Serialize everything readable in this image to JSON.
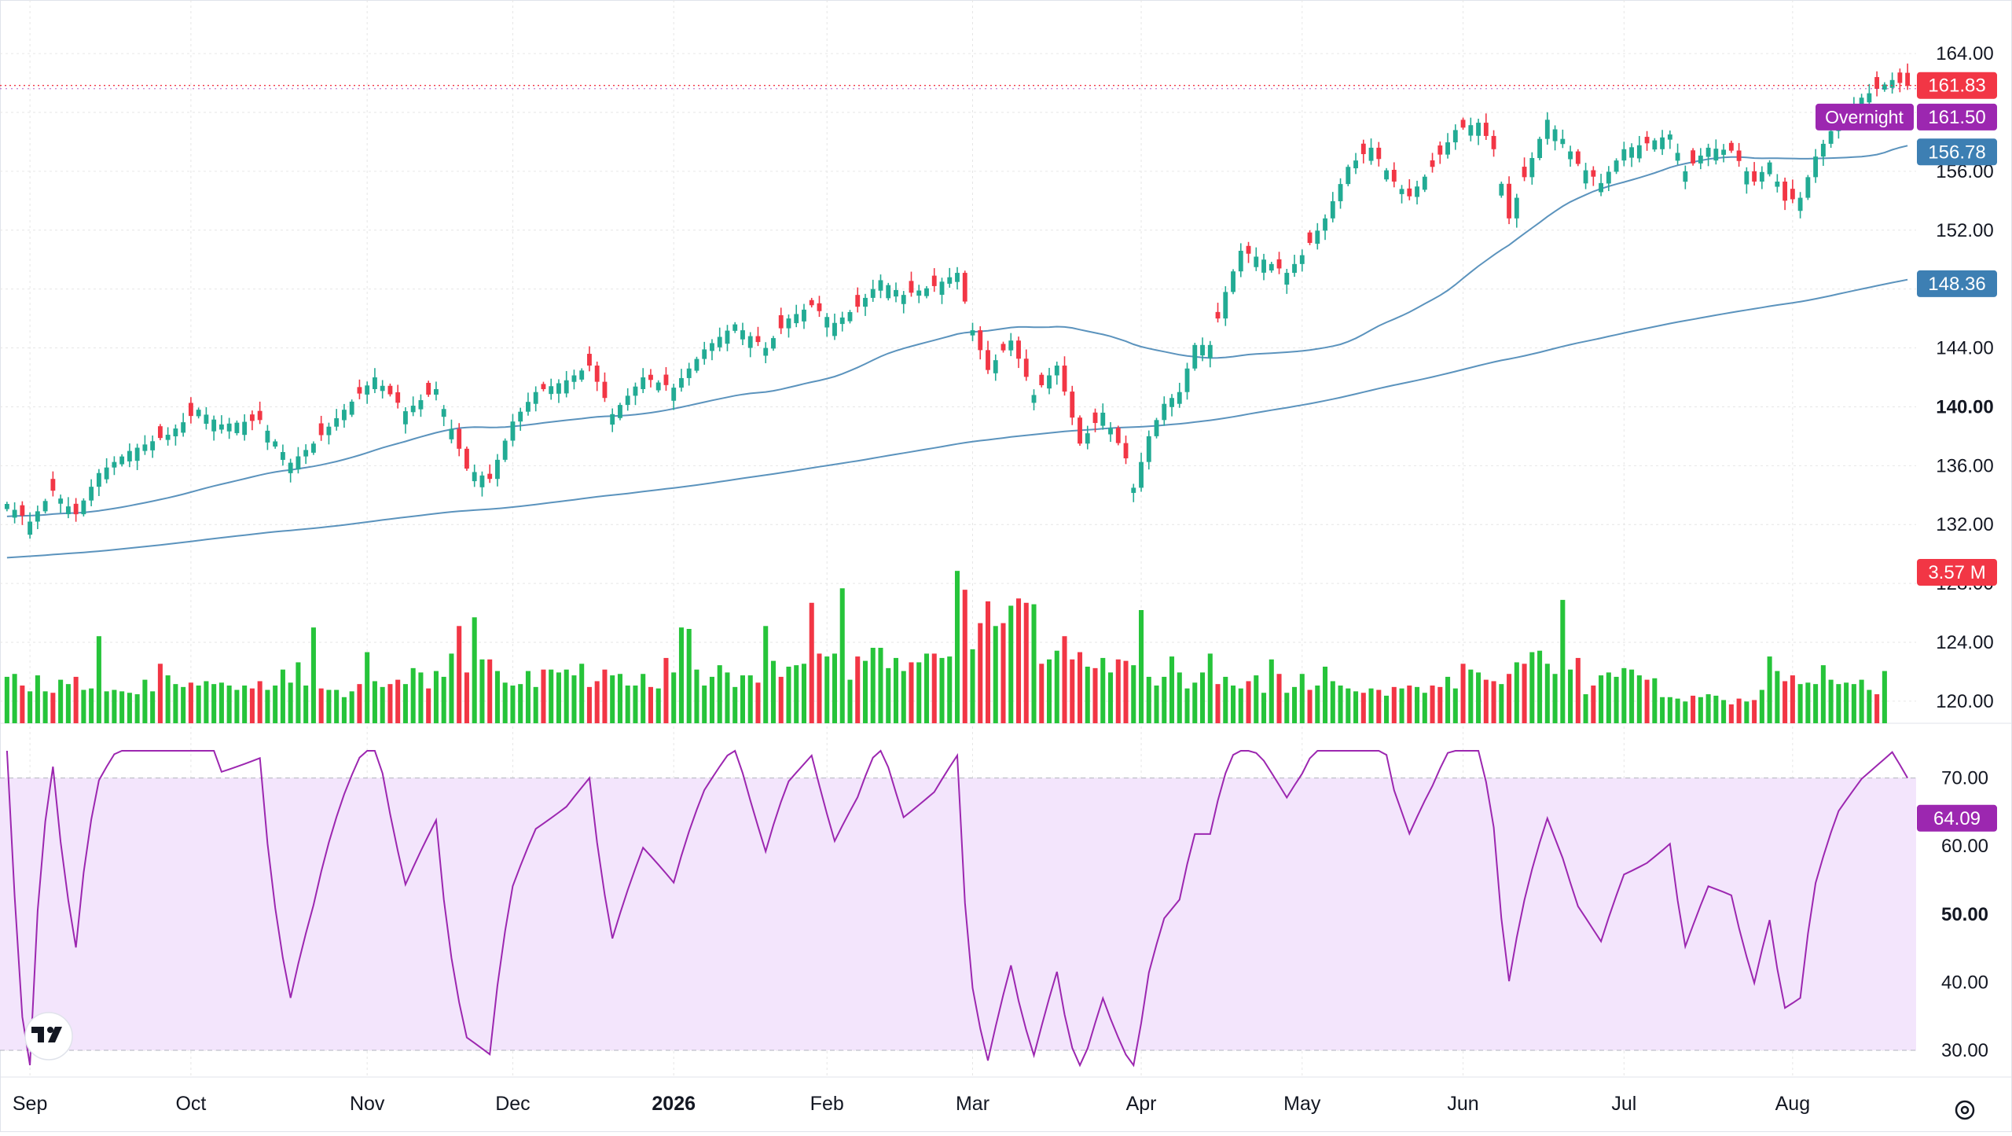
{
  "chart_data": [
    {
      "type": "candlestick",
      "role": "price",
      "y_ticks": [
        120,
        124,
        128,
        132,
        136,
        140,
        144,
        148,
        152,
        156,
        160,
        164
      ],
      "y_tick_labels": [
        "120.00",
        "124.00",
        "128.00",
        "132.00",
        "136.00",
        "140.00",
        "144.00",
        "148.00",
        "152.00",
        "156.00",
        "160.00",
        "164.00"
      ],
      "bold_tick": "140.00",
      "ylim": [
        118.5,
        165.5
      ],
      "x_labels": [
        "Sep",
        "Oct",
        "Nov",
        "Dec",
        "2026",
        "Feb",
        "Mar",
        "Apr",
        "May",
        "Jun",
        "Jul",
        "Aug"
      ],
      "x_label_day_index": [
        3,
        24,
        47,
        66,
        87,
        107,
        126,
        148,
        169,
        190,
        211,
        233
      ],
      "bold_x_label": "2026",
      "price_labels": {
        "last": {
          "text": "161.83",
          "value": 161.83,
          "color": "#f23645"
        },
        "overnight": {
          "tag": "Overnight",
          "text": "161.50",
          "value": 161.5,
          "color": "#9c27b0"
        },
        "ma_fast": {
          "text": "156.78",
          "value": 156.78,
          "color": "#3d7fb3"
        },
        "ma_slow": {
          "text": "148.36",
          "value": 148.36,
          "color": "#3d7fb3"
        }
      },
      "anchors": [
        [
          0,
          133.4
        ],
        [
          3,
          132.2
        ],
        [
          6,
          134.3
        ],
        [
          9,
          132.7
        ],
        [
          12,
          135.5
        ],
        [
          16,
          137.0
        ],
        [
          21,
          138.1
        ],
        [
          25,
          139.8
        ],
        [
          28,
          138.8
        ],
        [
          33,
          139.1
        ],
        [
          37,
          136.2
        ],
        [
          40,
          137.5
        ],
        [
          44,
          139.8
        ],
        [
          48,
          142.0
        ],
        [
          52,
          139.7
        ],
        [
          56,
          141.2
        ],
        [
          60,
          135.8
        ],
        [
          63,
          135.1
        ],
        [
          66,
          139.0
        ],
        [
          69,
          141.0
        ],
        [
          73,
          141.8
        ],
        [
          76,
          142.8
        ],
        [
          79,
          139.5
        ],
        [
          83,
          142.0
        ],
        [
          87,
          141.3
        ],
        [
          91,
          143.9
        ],
        [
          95,
          145.6
        ],
        [
          99,
          144.0
        ],
        [
          102,
          146.0
        ],
        [
          105,
          146.9
        ],
        [
          108,
          145.7
        ],
        [
          111,
          146.8
        ],
        [
          114,
          148.6
        ],
        [
          117,
          147.6
        ],
        [
          121,
          148.2
        ],
        [
          124,
          149.1
        ],
        [
          126,
          145.2
        ],
        [
          128,
          142.5
        ],
        [
          131,
          144.5
        ],
        [
          134,
          140.8
        ],
        [
          137,
          142.8
        ],
        [
          140,
          137.5
        ],
        [
          143,
          139.6
        ],
        [
          146,
          136.5
        ],
        [
          147,
          134.5
        ],
        [
          149,
          138.0
        ],
        [
          151,
          140.2
        ],
        [
          153,
          141.0
        ],
        [
          155,
          144.2
        ],
        [
          157,
          144.2
        ],
        [
          159,
          147.8
        ],
        [
          161,
          150.6
        ],
        [
          164,
          150.0
        ],
        [
          167,
          149.1
        ],
        [
          169,
          150.3
        ],
        [
          172,
          152.8
        ],
        [
          175,
          156.3
        ],
        [
          178,
          157.6
        ],
        [
          181,
          155.3
        ],
        [
          183,
          154.3
        ],
        [
          186,
          156.3
        ],
        [
          189,
          158.8
        ],
        [
          192,
          159.3
        ],
        [
          194,
          157.5
        ],
        [
          196,
          152.8
        ],
        [
          198,
          155.6
        ],
        [
          201,
          159.5
        ],
        [
          203,
          158.2
        ],
        [
          205,
          156.5
        ],
        [
          208,
          155.2
        ],
        [
          211,
          157.5
        ],
        [
          214,
          157.9
        ],
        [
          217,
          158.5
        ],
        [
          219,
          156.0
        ],
        [
          222,
          157.6
        ],
        [
          225,
          157.4
        ],
        [
          228,
          155.3
        ],
        [
          230,
          156.6
        ],
        [
          232,
          154.0
        ],
        [
          234,
          154.2
        ],
        [
          236,
          157.0
        ],
        [
          239,
          159.6
        ],
        [
          242,
          161.0
        ],
        [
          246,
          162.2
        ],
        [
          248,
          161.8
        ]
      ],
      "down_days": [
        2,
        6,
        9,
        20,
        24,
        32,
        33,
        41,
        46,
        50,
        51,
        55,
        59,
        60,
        63,
        70,
        76,
        77,
        78,
        84,
        86,
        98,
        101,
        105,
        106,
        111,
        118,
        121,
        125,
        127,
        128,
        130,
        132,
        133,
        135,
        138,
        139,
        140,
        142,
        145,
        146,
        158,
        162,
        166,
        170,
        177,
        179,
        181,
        183,
        186,
        187,
        190,
        193,
        194,
        196,
        198,
        205,
        207,
        214,
        220,
        225,
        226,
        228,
        232,
        233,
        244,
        247,
        248
      ],
      "volume": {
        "ylim_max": 13,
        "values_m": [
          3.2,
          3.4,
          2.6,
          2.2,
          3.3,
          2.2,
          2.1,
          3.0,
          2.7,
          3.2,
          2.3,
          2.4,
          6.0,
          2.2,
          2.3,
          2.2,
          2.1,
          2.0,
          3.0,
          2.2,
          4.1,
          3.3,
          2.7,
          2.5,
          2.8,
          2.6,
          2.9,
          2.7,
          2.8,
          2.6,
          2.3,
          2.6,
          2.4,
          2.9,
          2.3,
          2.6,
          3.7,
          2.8,
          4.2,
          2.6,
          6.6,
          2.4,
          2.3,
          2.3,
          1.8,
          2.2,
          2.7,
          4.9,
          2.9,
          2.5,
          2.7,
          3.0,
          2.7,
          3.8,
          3.5,
          2.4,
          3.6,
          3.2,
          4.8,
          6.7,
          3.5,
          7.3,
          4.4,
          4.4,
          3.6,
          2.8,
          2.6,
          2.7,
          3.6,
          2.5,
          3.7,
          3.7,
          3.5,
          3.7,
          3.3,
          4.1,
          2.5,
          2.9,
          3.7,
          3.3,
          3.4,
          2.6,
          2.6,
          3.4,
          2.5,
          2.4,
          4.5,
          3.5,
          6.6,
          6.5,
          3.7,
          2.6,
          3.2,
          4.0,
          3.5,
          2.5,
          3.3,
          3.3,
          2.8,
          6.7,
          4.3,
          3.2,
          3.9,
          4.0,
          4.1,
          8.3,
          4.8,
          4.6,
          4.8,
          9.3,
          3.0,
          4.6,
          4.3,
          5.2,
          5.2,
          3.8,
          4.5,
          3.6,
          4.2,
          4.2,
          4.8,
          4.8,
          4.5,
          4.6,
          10.5,
          9.2,
          5.1,
          6.9,
          8.4,
          6.7,
          6.9,
          8.1,
          8.6,
          8.3,
          8.2,
          4.1,
          4.4,
          5.0,
          6.0,
          4.4,
          4.9,
          3.9,
          3.8,
          4.5,
          3.5,
          4.4,
          4.3,
          4.0,
          7.8,
          3.2,
          2.6,
          3.2,
          4.6,
          3.5,
          2.4,
          2.8,
          3.5,
          4.8,
          2.7,
          3.2,
          2.6,
          2.4,
          2.9,
          3.3,
          2.1,
          4.4,
          3.4,
          2.1,
          2.5,
          3.4,
          2.3,
          2.6,
          3.9,
          2.9,
          2.6,
          2.4,
          2.2,
          2.1,
          2.4,
          2.3,
          1.9,
          2.5,
          2.4,
          2.6,
          2.5,
          2.1,
          2.6,
          2.5,
          3.2,
          2.4,
          4.1,
          3.7,
          3.5,
          3.0,
          2.9,
          2.7,
          3.4,
          4.2,
          4.1,
          4.9,
          5.0,
          4.1,
          3.4,
          8.5,
          3.7,
          4.5,
          2.0,
          2.6,
          3.3,
          3.5,
          3.2,
          3.8,
          3.7,
          3.3,
          3.0,
          3.1,
          1.8,
          1.8,
          1.7,
          1.5,
          1.9,
          1.8,
          2.0,
          1.9,
          1.6,
          1.3,
          1.7,
          1.5,
          1.6,
          2.3,
          4.6,
          3.6,
          2.9,
          3.3,
          2.7,
          2.8,
          2.7,
          4.0,
          3.0,
          2.7,
          2.8,
          2.7,
          3.0,
          2.3,
          2.0,
          3.6
        ],
        "last_label": {
          "text": "3.57 M",
          "value": 3.57,
          "color": "#f23645"
        }
      }
    },
    {
      "type": "line",
      "role": "rsi",
      "y_ticks": [
        30,
        40,
        50,
        60,
        70
      ],
      "y_tick_labels": [
        "30.00",
        "40.00",
        "50.00",
        "60.00",
        "70.00"
      ],
      "bold_tick": "50.00",
      "ylim": [
        27.8,
        74
      ],
      "band": [
        30,
        70
      ],
      "last_label": {
        "text": "64.09",
        "value": 64.09,
        "color": "#9c27b0"
      }
    }
  ],
  "colors": {
    "up": "#22ab94",
    "down": "#f23645",
    "vol_up": "#26c43a",
    "vol_down": "#f23645",
    "ma": "#5b93bd",
    "rsi_line": "#9c27b0",
    "rsi_band": "#f3e5fc",
    "grid": "#e6e6e6",
    "text": "#131722"
  },
  "icons": {
    "logo": "tradingview-logo-icon",
    "settings": "gear-icon"
  }
}
